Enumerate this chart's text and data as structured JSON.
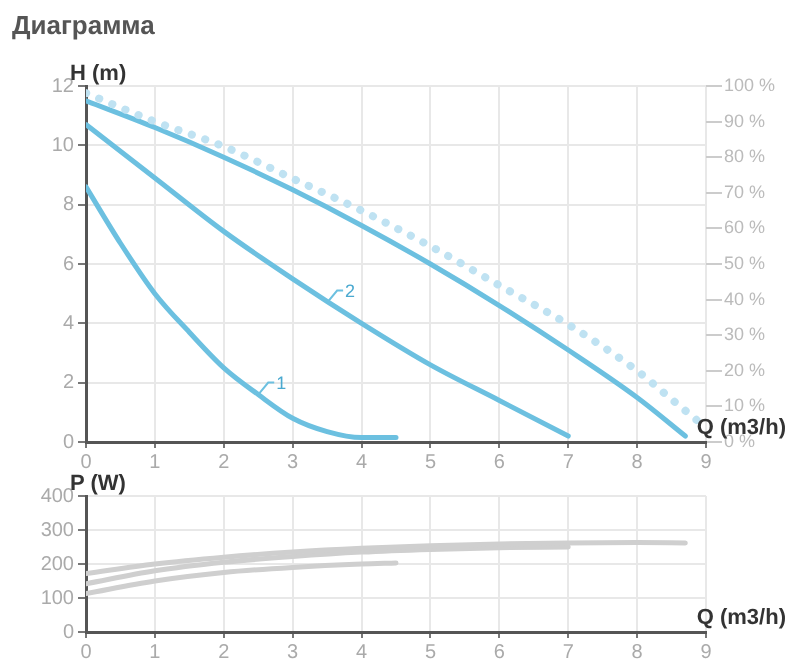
{
  "chart_data": [
    {
      "type": "line",
      "title": "Диаграмма",
      "ylabel": "H (m)",
      "xlabel": "Q (m3/h)",
      "xlim": [
        0,
        9
      ],
      "xticks": [
        0,
        1,
        2,
        3,
        4,
        5,
        6,
        7,
        8,
        9
      ],
      "ylim": [
        0,
        12
      ],
      "yticks": [
        0,
        2,
        4,
        6,
        8,
        10,
        12
      ],
      "y2lim": [
        0,
        100
      ],
      "y2ticks": [
        {
          "value": 0,
          "label": "0 %"
        },
        {
          "value": 10,
          "label": "10 %"
        },
        {
          "value": 20,
          "label": "20 %"
        },
        {
          "value": 30,
          "label": "30 %"
        },
        {
          "value": 40,
          "label": "40 %"
        },
        {
          "value": 50,
          "label": "50 %"
        },
        {
          "value": 60,
          "label": "60 %"
        },
        {
          "value": 70,
          "label": "70 %"
        },
        {
          "value": 80,
          "label": "80 %"
        },
        {
          "value": 90,
          "label": "90 %"
        },
        {
          "value": 100,
          "label": "100 %"
        }
      ],
      "grid": true,
      "series": [
        {
          "color": "#bfe2f2",
          "axis": "y2",
          "line_style": "dotted",
          "x": [
            0,
            1,
            2,
            3,
            4,
            5,
            6,
            7,
            8,
            8.5,
            9
          ],
          "values": [
            98,
            90,
            83,
            74,
            65,
            55,
            44,
            33,
            20,
            12,
            4
          ]
        },
        {
          "color": "#6cc0e0",
          "x": [
            0,
            1,
            2,
            3,
            4,
            5,
            6,
            7,
            8,
            8.7
          ],
          "values": [
            11.5,
            10.6,
            9.6,
            8.5,
            7.3,
            6,
            4.6,
            3.1,
            1.5,
            0.2
          ]
        },
        {
          "color": "#6cc0e0",
          "x": [
            0,
            1,
            2,
            3,
            4,
            5,
            6,
            7
          ],
          "values": [
            10.7,
            8.9,
            7.1,
            5.5,
            4,
            2.6,
            1.4,
            0.2
          ]
        },
        {
          "color": "#6cc0e0",
          "x": [
            0,
            0.5,
            1,
            1.5,
            2,
            2.5,
            3,
            3.5,
            4,
            4.5
          ],
          "values": [
            8.6,
            6.7,
            5,
            3.7,
            2.5,
            1.6,
            0.8,
            0.35,
            0.15,
            0.15
          ]
        }
      ],
      "annotations": [
        {
          "text": "1",
          "x": 2.5,
          "y": 1.6
        },
        {
          "text": "2",
          "x": 3.5,
          "y": 4.7
        }
      ]
    },
    {
      "type": "line",
      "ylabel": "P (W)",
      "xlabel": "Q (m3/h)",
      "xlim": [
        0,
        9
      ],
      "xticks": [
        0,
        1,
        2,
        3,
        4,
        5,
        6,
        7,
        8,
        9
      ],
      "ylim": [
        0,
        400
      ],
      "yticks": [
        0,
        100,
        200,
        300,
        400
      ],
      "grid": true,
      "series": [
        {
          "color": "#cfcfcf",
          "x": [
            0,
            1,
            2,
            3,
            4,
            5,
            6,
            7,
            8,
            8.7
          ],
          "values": [
            172,
            200,
            220,
            235,
            246,
            254,
            259,
            262,
            263,
            262
          ]
        },
        {
          "color": "#cfcfcf",
          "x": [
            0,
            1,
            2,
            3,
            4,
            5,
            6,
            7
          ],
          "values": [
            142,
            180,
            205,
            222,
            235,
            243,
            248,
            250
          ]
        },
        {
          "color": "#cfcfcf",
          "x": [
            0,
            1,
            2,
            3,
            4,
            4.5
          ],
          "values": [
            113,
            150,
            175,
            190,
            200,
            203
          ]
        }
      ]
    }
  ]
}
